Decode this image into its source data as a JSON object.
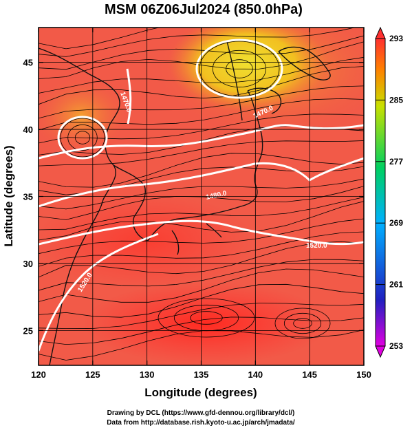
{
  "chart_data": {
    "type": "heatmap",
    "title": "MSM 06Z06Jul2024 (850.0hPa)",
    "xlabel": "Longitude (degrees)",
    "ylabel": "Latitude  (degrees)",
    "xlim": [
      120,
      150
    ],
    "ylim": [
      22.4,
      47.6
    ],
    "x_ticks": [
      120,
      125,
      130,
      135,
      140,
      145,
      150
    ],
    "y_ticks": [
      25,
      30,
      35,
      40,
      45
    ],
    "grid": true,
    "colorbar": {
      "min": 253,
      "max": 293,
      "ticks": [
        253,
        261,
        269,
        277,
        285,
        293
      ],
      "colors": [
        "#e000e0",
        "#2020c0",
        "#00b0ff",
        "#00d060",
        "#c8e000",
        "#ff8000",
        "#ff3030"
      ]
    },
    "contours": [
      {
        "label": "1470.0"
      },
      {
        "label": "1480.0"
      },
      {
        "label": "1520.0"
      },
      {
        "label": "1520.0"
      },
      {
        "label": "1470.0"
      }
    ]
  },
  "footer": {
    "line1": "Drawing by DCL (https://www.gfd-dennou.org/library/dcl/)",
    "line2": "Data from http://database.rish.kyoto-u.ac.jp/arch/jmadata/"
  }
}
